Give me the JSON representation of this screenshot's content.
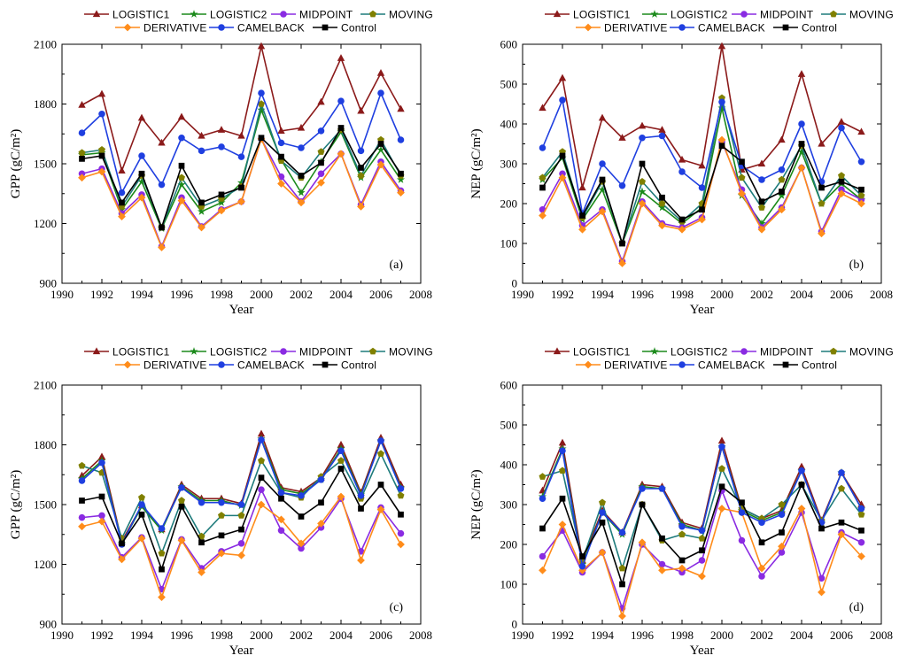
{
  "colors": {
    "LOGISTIC1": "#8b1a1a",
    "LOGISTIC2": "#1b8a1b",
    "MIDPOINT": "#8a2be2",
    "MOVING": "#1e7b7b",
    "MOVING_marker": "#808000",
    "DERIVATIVE": "#ff8c1a",
    "CAMELBACK": "#1f3fe0",
    "Control": "#000000"
  },
  "chart_data": [
    {
      "panel": "(a)",
      "type": "line",
      "ylabel": "GPP (gC/m²)",
      "xlabel": "Year",
      "xlim": [
        1990,
        2008
      ],
      "xticks": [
        1990,
        1992,
        1994,
        1996,
        1998,
        2000,
        2002,
        2004,
        2006,
        2008
      ],
      "ylim": [
        900,
        2100
      ],
      "yticks": [
        900,
        1200,
        1500,
        1800,
        2100
      ],
      "x": [
        1991,
        1992,
        1993,
        1994,
        1995,
        1996,
        1997,
        1998,
        1999,
        2000,
        2001,
        2002,
        2003,
        2004,
        2005,
        2006,
        2007
      ],
      "legend": [
        "LOGISTIC1",
        "LOGISTIC2",
        "MIDPOINT",
        "MOVING",
        "DERIVATIVE",
        "CAMELBACK",
        "Control"
      ],
      "series": [
        {
          "name": "LOGISTIC1",
          "marker": "triangle",
          "values": [
            1795,
            1850,
            1465,
            1730,
            1605,
            1735,
            1640,
            1670,
            1640,
            2090,
            1665,
            1680,
            1810,
            2030,
            1765,
            1955,
            1775
          ]
        },
        {
          "name": "LOGISTIC2",
          "marker": "star",
          "values": [
            1545,
            1555,
            1270,
            1410,
            1175,
            1395,
            1260,
            1305,
            1405,
            1770,
            1520,
            1355,
            1510,
            1660,
            1430,
            1570,
            1420
          ]
        },
        {
          "name": "MIDPOINT",
          "marker": "circle",
          "values": [
            1450,
            1475,
            1250,
            1345,
            1085,
            1330,
            1185,
            1270,
            1310,
            1625,
            1435,
            1310,
            1450,
            1550,
            1295,
            1510,
            1365
          ]
        },
        {
          "name": "MOVING",
          "marker": "pentagon",
          "values": [
            1555,
            1570,
            1285,
            1440,
            1180,
            1430,
            1285,
            1325,
            1385,
            1800,
            1515,
            1430,
            1560,
            1670,
            1440,
            1620,
            1440
          ]
        },
        {
          "name": "DERIVATIVE",
          "marker": "diamond",
          "values": [
            1430,
            1460,
            1235,
            1330,
            1080,
            1315,
            1180,
            1265,
            1310,
            1625,
            1400,
            1305,
            1405,
            1550,
            1285,
            1495,
            1355
          ]
        },
        {
          "name": "CAMELBACK",
          "marker": "circle",
          "values": [
            1655,
            1750,
            1355,
            1540,
            1395,
            1630,
            1565,
            1585,
            1535,
            1855,
            1605,
            1580,
            1665,
            1815,
            1565,
            1855,
            1620
          ]
        },
        {
          "name": "Control",
          "marker": "square",
          "values": [
            1525,
            1540,
            1305,
            1450,
            1180,
            1490,
            1305,
            1345,
            1380,
            1630,
            1535,
            1440,
            1505,
            1680,
            1480,
            1600,
            1450
          ]
        }
      ]
    },
    {
      "panel": "(b)",
      "type": "line",
      "ylabel": "NEP (gC/m²)",
      "xlabel": "Year",
      "xlim": [
        1990,
        2008
      ],
      "xticks": [
        1990,
        1992,
        1994,
        1996,
        1998,
        2000,
        2002,
        2004,
        2006,
        2008
      ],
      "ylim": [
        0,
        600
      ],
      "yticks": [
        0,
        100,
        200,
        300,
        400,
        500,
        600
      ],
      "x": [
        1991,
        1992,
        1993,
        1994,
        1995,
        1996,
        1997,
        1998,
        1999,
        2000,
        2001,
        2002,
        2003,
        2004,
        2005,
        2006,
        2007
      ],
      "legend": [
        "LOGISTIC1",
        "LOGISTIC2",
        "MIDPOINT",
        "MOVING",
        "DERIVATIVE",
        "CAMELBACK",
        "Control"
      ],
      "series": [
        {
          "name": "LOGISTIC1",
          "marker": "triangle",
          "values": [
            440,
            515,
            240,
            415,
            365,
            395,
            385,
            310,
            295,
            595,
            285,
            300,
            360,
            525,
            350,
            405,
            380
          ]
        },
        {
          "name": "LOGISTIC2",
          "marker": "star",
          "values": [
            260,
            315,
            160,
            235,
            100,
            230,
            190,
            150,
            190,
            440,
            220,
            150,
            220,
            330,
            200,
            250,
            210
          ]
        },
        {
          "name": "MIDPOINT",
          "marker": "circle",
          "values": [
            185,
            275,
            145,
            185,
            55,
            205,
            150,
            140,
            165,
            355,
            235,
            140,
            190,
            290,
            130,
            235,
            210
          ]
        },
        {
          "name": "MOVING",
          "marker": "pentagon",
          "values": [
            265,
            330,
            165,
            255,
            100,
            255,
            200,
            155,
            200,
            465,
            265,
            190,
            260,
            345,
            200,
            270,
            220
          ]
        },
        {
          "name": "DERIVATIVE",
          "marker": "diamond",
          "values": [
            170,
            265,
            135,
            180,
            50,
            200,
            145,
            135,
            160,
            360,
            225,
            135,
            185,
            290,
            125,
            225,
            200
          ]
        },
        {
          "name": "CAMELBACK",
          "marker": "circle",
          "values": [
            340,
            460,
            175,
            300,
            245,
            365,
            370,
            280,
            240,
            455,
            295,
            260,
            285,
            400,
            255,
            390,
            305
          ]
        },
        {
          "name": "Control",
          "marker": "square",
          "values": [
            240,
            320,
            170,
            260,
            100,
            300,
            215,
            160,
            185,
            345,
            305,
            205,
            230,
            350,
            240,
            255,
            235
          ]
        }
      ]
    },
    {
      "panel": "(c)",
      "type": "line",
      "ylabel": "GPP (gC/m²)",
      "xlabel": "Year",
      "xlim": [
        1990,
        2008
      ],
      "xticks": [
        1990,
        1992,
        1994,
        1996,
        1998,
        2000,
        2002,
        2004,
        2006,
        2008
      ],
      "ylim": [
        900,
        2100
      ],
      "yticks": [
        900,
        1200,
        1500,
        1800,
        2100
      ],
      "x": [
        1991,
        1992,
        1993,
        1994,
        1995,
        1996,
        1997,
        1998,
        1999,
        2000,
        2001,
        2002,
        2003,
        2004,
        2005,
        2006,
        2007
      ],
      "legend": [
        "LOGISTIC1",
        "LOGISTIC2",
        "MIDPOINT",
        "MOVING",
        "DERIVATIVE",
        "CAMELBACK",
        "Control"
      ],
      "series": [
        {
          "name": "LOGISTIC1",
          "marker": "triangle",
          "values": [
            1645,
            1740,
            1315,
            1495,
            1375,
            1600,
            1530,
            1530,
            1505,
            1855,
            1585,
            1565,
            1635,
            1800,
            1560,
            1835,
            1600
          ]
        },
        {
          "name": "LOGISTIC2",
          "marker": "star",
          "values": [
            1630,
            1720,
            1305,
            1490,
            1370,
            1590,
            1520,
            1520,
            1495,
            1830,
            1575,
            1555,
            1625,
            1780,
            1550,
            1820,
            1585
          ]
        },
        {
          "name": "MIDPOINT",
          "marker": "circle",
          "values": [
            1435,
            1445,
            1235,
            1335,
            1075,
            1325,
            1180,
            1265,
            1305,
            1575,
            1370,
            1280,
            1385,
            1530,
            1265,
            1485,
            1355
          ]
        },
        {
          "name": "MOVING",
          "marker": "pentagon",
          "values": [
            1695,
            1660,
            1330,
            1535,
            1255,
            1520,
            1340,
            1445,
            1445,
            1720,
            1560,
            1535,
            1640,
            1720,
            1530,
            1755,
            1545
          ]
        },
        {
          "name": "DERIVATIVE",
          "marker": "diamond",
          "values": [
            1390,
            1415,
            1225,
            1330,
            1035,
            1320,
            1160,
            1255,
            1245,
            1500,
            1425,
            1305,
            1405,
            1540,
            1220,
            1475,
            1300
          ]
        },
        {
          "name": "CAMELBACK",
          "marker": "circle",
          "values": [
            1620,
            1710,
            1300,
            1500,
            1380,
            1585,
            1510,
            1510,
            1500,
            1825,
            1560,
            1545,
            1625,
            1770,
            1545,
            1820,
            1580
          ]
        },
        {
          "name": "Control",
          "marker": "square",
          "values": [
            1520,
            1540,
            1305,
            1450,
            1175,
            1490,
            1310,
            1345,
            1375,
            1635,
            1530,
            1440,
            1510,
            1680,
            1480,
            1600,
            1450
          ]
        }
      ]
    },
    {
      "panel": "(d)",
      "type": "line",
      "ylabel": "NEP (gC/m²)",
      "xlabel": "Year",
      "xlim": [
        1990,
        2008
      ],
      "xticks": [
        1990,
        1992,
        1994,
        1996,
        1998,
        2000,
        2002,
        2004,
        2006,
        2008
      ],
      "ylim": [
        0,
        600
      ],
      "yticks": [
        0,
        100,
        200,
        300,
        400,
        500,
        600
      ],
      "x": [
        1991,
        1992,
        1993,
        1994,
        1995,
        1996,
        1997,
        1998,
        1999,
        2000,
        2001,
        2002,
        2003,
        2004,
        2005,
        2006,
        2007
      ],
      "legend": [
        "LOGISTIC1",
        "LOGISTIC2",
        "MIDPOINT",
        "MOVING",
        "DERIVATIVE",
        "CAMELBACK",
        "Control"
      ],
      "series": [
        {
          "name": "LOGISTIC1",
          "marker": "triangle",
          "values": [
            335,
            455,
            160,
            285,
            230,
            350,
            345,
            255,
            240,
            460,
            290,
            265,
            285,
            395,
            260,
            380,
            300
          ]
        },
        {
          "name": "LOGISTIC2",
          "marker": "star",
          "values": [
            320,
            440,
            150,
            280,
            225,
            345,
            340,
            250,
            235,
            445,
            285,
            260,
            280,
            385,
            255,
            380,
            290
          ]
        },
        {
          "name": "MIDPOINT",
          "marker": "circle",
          "values": [
            170,
            235,
            130,
            180,
            40,
            200,
            150,
            130,
            160,
            335,
            210,
            120,
            180,
            280,
            115,
            230,
            205
          ]
        },
        {
          "name": "MOVING",
          "marker": "pentagon",
          "values": [
            370,
            385,
            160,
            305,
            140,
            300,
            210,
            225,
            215,
            390,
            290,
            265,
            300,
            350,
            260,
            340,
            275
          ]
        },
        {
          "name": "DERIVATIVE",
          "marker": "diamond",
          "values": [
            135,
            250,
            135,
            180,
            20,
            205,
            135,
            140,
            120,
            290,
            280,
            140,
            195,
            290,
            80,
            225,
            170
          ]
        },
        {
          "name": "CAMELBACK",
          "marker": "circle",
          "values": [
            315,
            435,
            145,
            280,
            230,
            340,
            340,
            245,
            235,
            445,
            280,
            255,
            275,
            385,
            255,
            380,
            290
          ]
        },
        {
          "name": "Control",
          "marker": "square",
          "values": [
            240,
            315,
            170,
            255,
            100,
            300,
            215,
            160,
            185,
            345,
            305,
            205,
            230,
            350,
            240,
            255,
            235
          ]
        }
      ]
    }
  ]
}
